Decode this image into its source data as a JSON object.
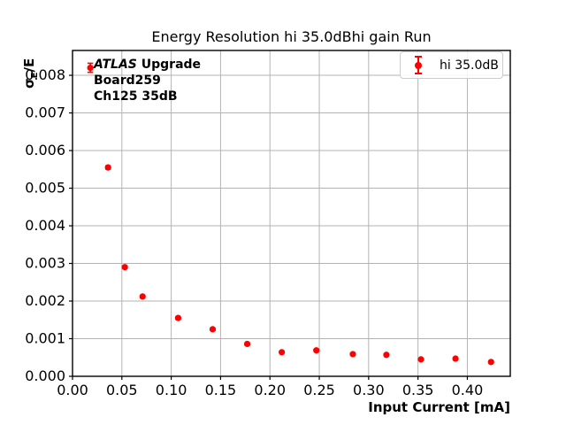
{
  "figure": {
    "title": "Energy Resolution hi 35.0dBhi gain Run",
    "x_axis_label": "Input Current [mA]",
    "y_axis_label": {
      "symbol": "σ",
      "subscript": "E",
      "rest": "/E"
    },
    "annotation": {
      "experiment": "ATLAS",
      "experiment_suffix": " Upgrade",
      "board": "Board259",
      "channel": "Ch125 35dB"
    },
    "legend": {
      "entry": "hi 35.0dB",
      "marker_icon": "red-errorbar-point"
    }
  },
  "colors": {
    "series": "#ff0000",
    "grid": "#b3b3b3",
    "spine": "#000000",
    "tick": "#000000",
    "text": "#000000",
    "legend_border": "#cccccc",
    "background": "#ffffff"
  },
  "chart_data": {
    "type": "scatter",
    "title": "Energy Resolution hi 35.0dBhi gain Run",
    "xlabel": "Input Current [mA]",
    "ylabel": "σ_E/E",
    "xlim": [
      0,
      0.4435
    ],
    "ylim": [
      0,
      0.00866
    ],
    "grid": true,
    "legend_position": "upper right",
    "x_ticks": [
      0,
      0.05,
      0.1,
      0.15,
      0.2,
      0.25,
      0.3,
      0.35,
      0.4
    ],
    "x_tick_labels": [
      "0.00",
      "0.05",
      "0.10",
      "0.15",
      "0.20",
      "0.25",
      "0.30",
      "0.35",
      "0.40"
    ],
    "y_ticks": [
      0,
      0.001,
      0.002,
      0.003,
      0.004,
      0.005,
      0.006,
      0.007,
      0.008
    ],
    "y_tick_labels": [
      "0.000",
      "0.001",
      "0.002",
      "0.003",
      "0.004",
      "0.005",
      "0.006",
      "0.007",
      "0.008"
    ],
    "series": [
      {
        "name": "hi 35.0dB",
        "color": "#ff0000",
        "marker": "circle",
        "errorbars": true,
        "x": [
          0.018,
          0.036,
          0.053,
          0.071,
          0.107,
          0.142,
          0.177,
          0.212,
          0.247,
          0.284,
          0.318,
          0.353,
          0.388,
          0.424
        ],
        "y": [
          0.0082,
          0.00555,
          0.0029,
          0.00212,
          0.00155,
          0.00125,
          0.00086,
          0.00064,
          0.00069,
          0.00059,
          0.00057,
          0.00045,
          0.00047,
          0.00038
        ],
        "yerr": [
          0.00012,
          4e-05,
          3e-05,
          3e-05,
          3e-05,
          3e-05,
          2e-05,
          2e-05,
          2e-05,
          2e-05,
          2e-05,
          2e-05,
          2e-05,
          2e-05
        ]
      }
    ]
  }
}
